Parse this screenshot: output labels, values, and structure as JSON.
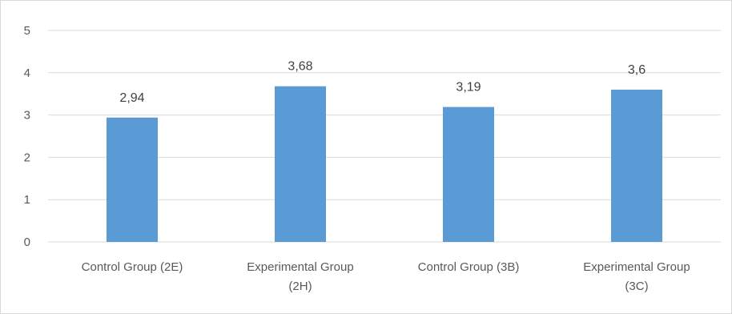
{
  "chart_data": {
    "type": "bar",
    "categories": [
      [
        "Control Group (2E)"
      ],
      [
        "Experimental Group",
        "(2H)"
      ],
      [
        "Control Group (3B)"
      ],
      [
        "Experimental Group",
        "(3C)"
      ]
    ],
    "values": [
      2.94,
      3.68,
      3.19,
      3.6
    ],
    "data_labels": [
      "2,94",
      "3,68",
      "3,19",
      "3,6"
    ],
    "y_ticks": [
      "0",
      "1",
      "2",
      "3",
      "4",
      "5"
    ],
    "ylim": [
      0,
      5
    ],
    "title": "",
    "xlabel": "",
    "ylabel": "",
    "grid": true,
    "legend": "none",
    "colors": {
      "bar": "#5b9bd5",
      "grid": "#d9d9d9",
      "axis_text": "#595959",
      "label_text": "#404040"
    }
  }
}
